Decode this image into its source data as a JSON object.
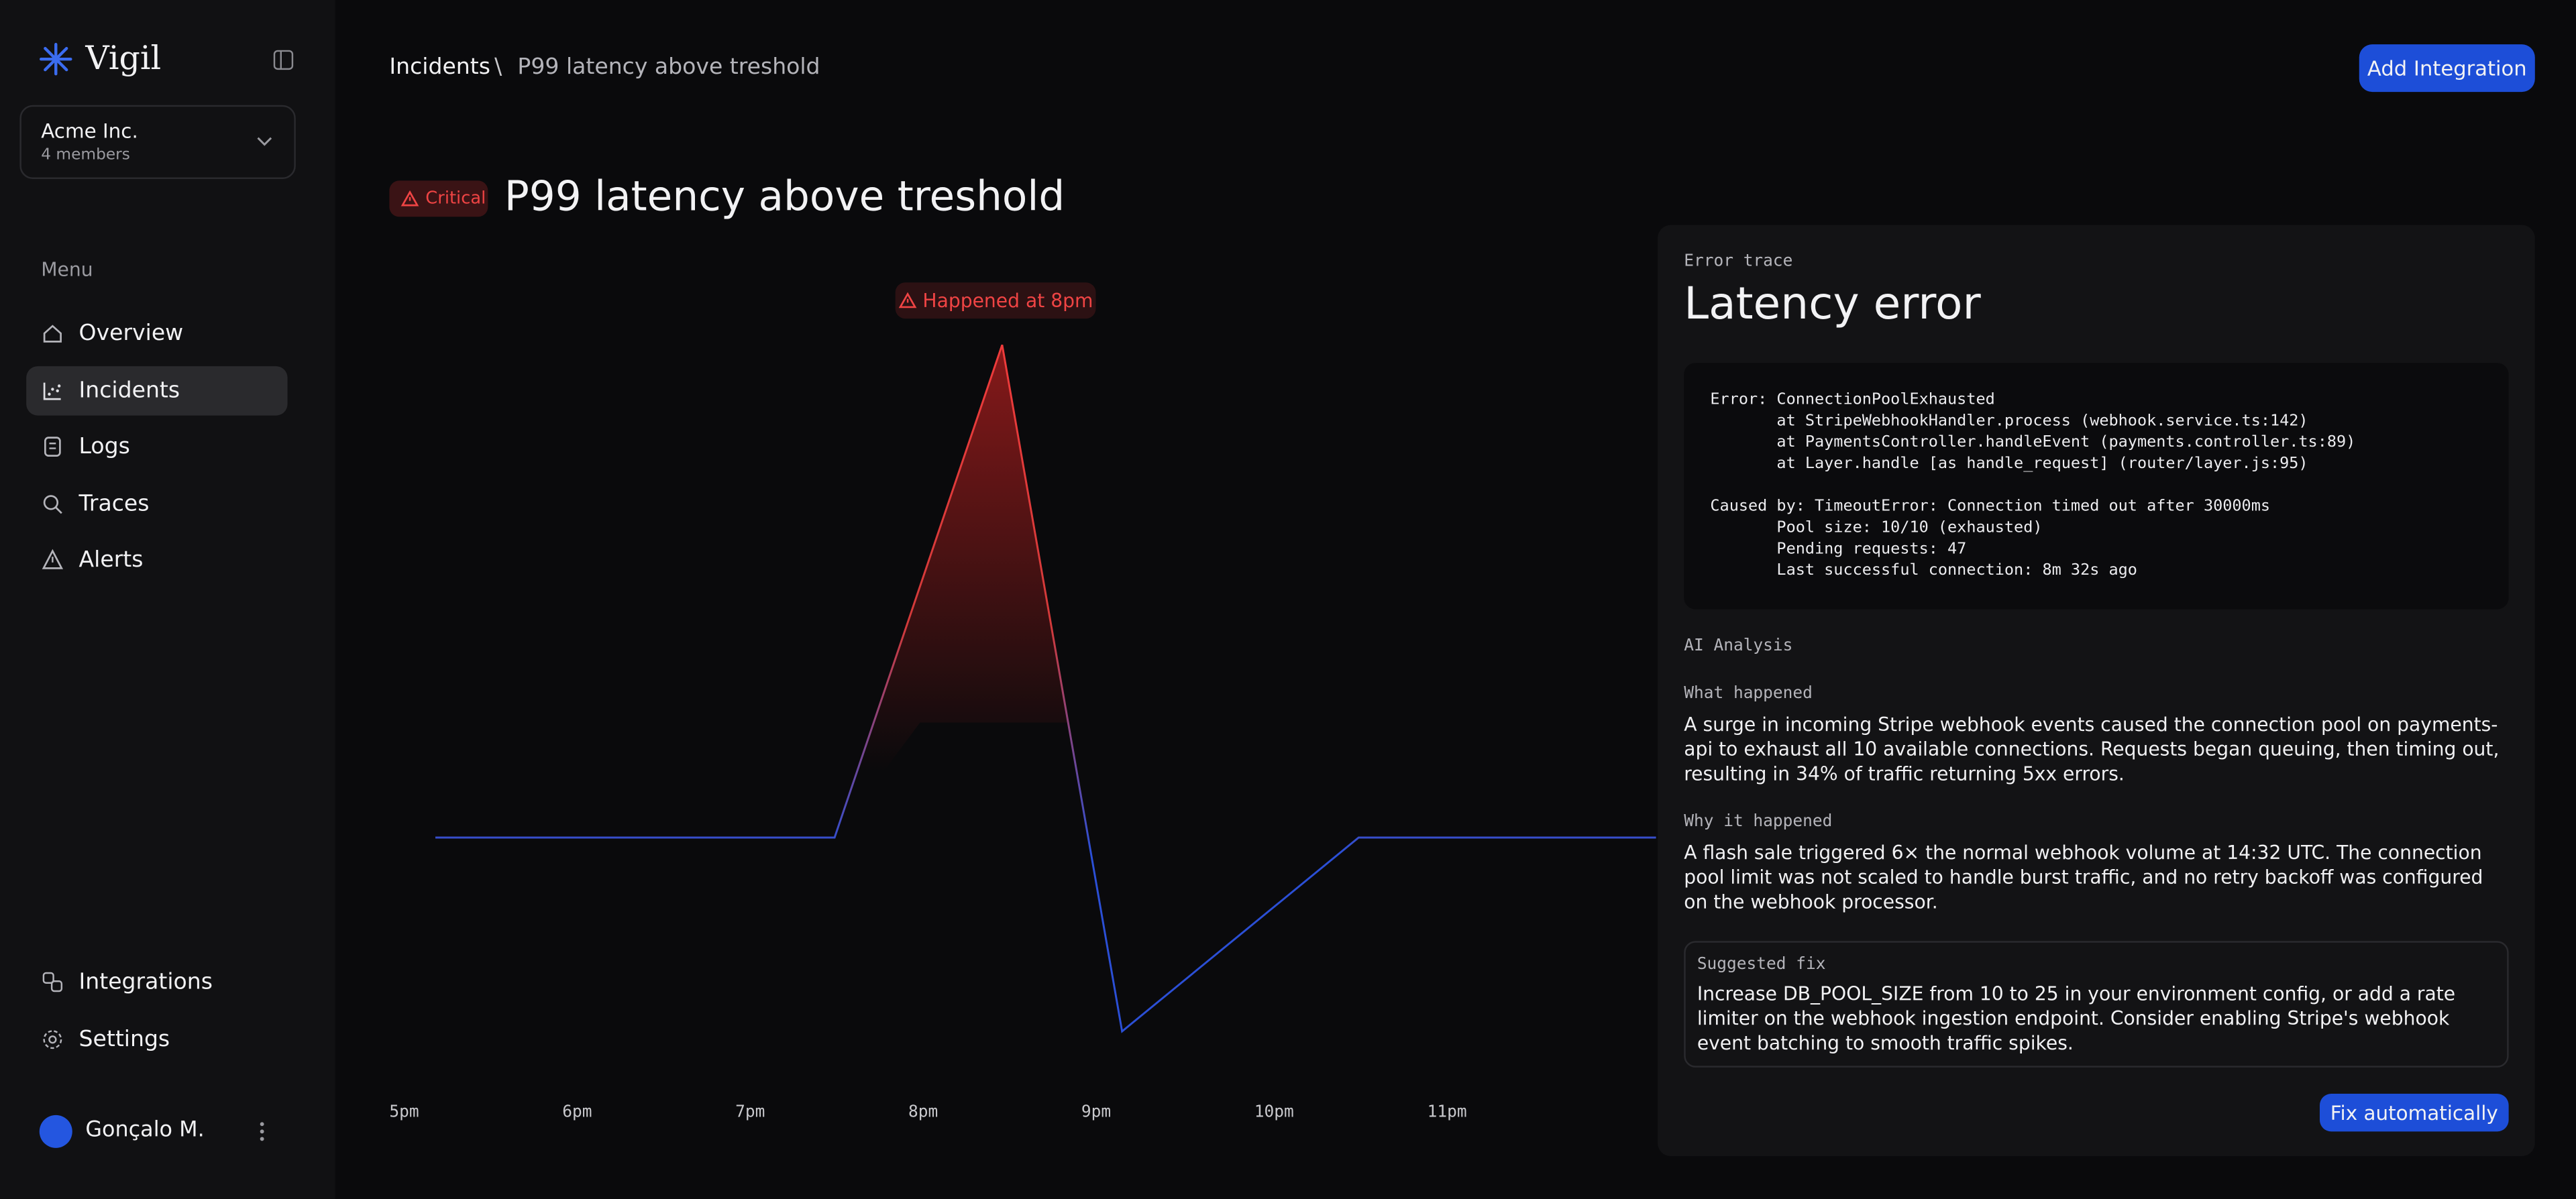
{
  "sidebar": {
    "brand": "Vigil",
    "org": {
      "name": "Acme Inc.",
      "members": "4 members"
    },
    "menu_label": "Menu",
    "menu": [
      "Overview",
      "Incidents",
      "Logs",
      "Traces",
      "Alerts"
    ],
    "footer_menu": [
      "Integrations",
      "Settings"
    ],
    "user": "Gonçalo M."
  },
  "header": {
    "breadcrumb": [
      "Incidents",
      "P99 latency above treshold"
    ],
    "separator": "\\",
    "button": "Add Integration"
  },
  "incident": {
    "severity": "Critical",
    "title": "P99 latency above treshold",
    "annotation": "Happened at 8pm",
    "x_labels": [
      "5pm",
      "6pm",
      "7pm",
      "8pm",
      "9pm",
      "10pm",
      "11pm"
    ]
  },
  "panel": {
    "label": "Error trace",
    "title": "Latency error",
    "error_lines": [
      "Error: ConnectionPoolExhausted",
      "       at StripeWebhookHandler.process (webhook.service.ts:142)",
      "       at PaymentsController.handleEvent (payments.controller.ts:89)",
      "       at Layer.handle [as handle_request] (router/layer.js:95)"
    ],
    "cause_lines": [
      "Caused by: TimeoutError: Connection timed out after 30000ms",
      "       Pool size: 10/10 (exhausted)",
      "       Pending requests: 47",
      "       Last successful connection: 8m 32s ago"
    ],
    "analysis_label": "AI Analysis",
    "what_label": "What happened",
    "what_text": "A surge in incoming Stripe webhook events caused the connection pool on payments-api to exhaust all 10 available connections. Requests began queuing, then timing out, resulting in 34% of traffic returning 5xx errors.",
    "why_label": "Why it happened",
    "why_text": "A flash sale triggered 6× the normal webhook volume at 14:32 UTC. The connection pool limit was not scaled to handle burst traffic, and no retry backoff was configured on the webhook processor.",
    "fix_label": "Suggested fix",
    "fix_text": "Increase DB_POOL_SIZE from 10 to 25 in your environment config, or add a rate limiter on the webhook ingestion endpoint. Consider enabling Stripe's webhook event batching to smooth traffic spikes.",
    "fix_button": "Fix automatically"
  }
}
